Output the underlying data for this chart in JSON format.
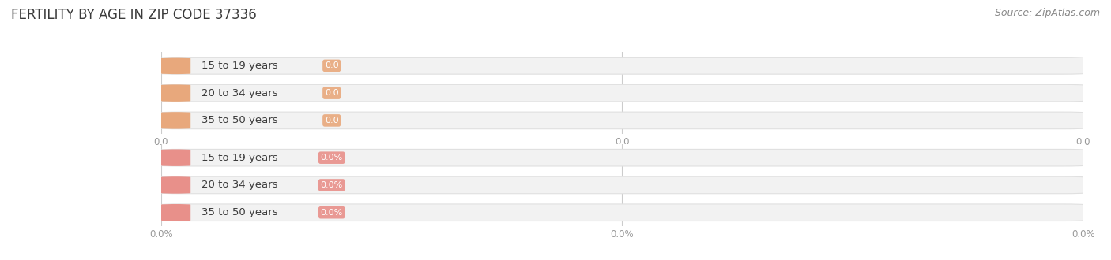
{
  "title": "FERTILITY BY AGE IN ZIP CODE 37336",
  "source_text": "Source: ZipAtlas.com",
  "categories": [
    "15 to 19 years",
    "20 to 34 years",
    "35 to 50 years"
  ],
  "count_values": [
    0.0,
    0.0,
    0.0
  ],
  "pct_values": [
    0.0,
    0.0,
    0.0
  ],
  "count_xtick_labels": [
    "0.0",
    "0.0",
    "0.0"
  ],
  "pct_xtick_labels": [
    "0.0%",
    "0.0%",
    "0.0%"
  ],
  "bar_color_count": "#E8A87C",
  "bar_color_pct": "#E8908A",
  "bar_bg_color": "#F2F2F2",
  "bar_bg_border": "#E0E0E0",
  "title_color": "#3A3A3A",
  "source_color": "#888888",
  "category_color": "#3A3A3A",
  "value_label_color": "#FFFFFF",
  "tick_color": "#999999",
  "gridline_color": "#CCCCCC",
  "background_color": "#FFFFFF",
  "title_fontsize": 12,
  "source_fontsize": 9,
  "value_label_fontsize": 8,
  "tick_fontsize": 8.5,
  "category_fontsize": 9.5
}
